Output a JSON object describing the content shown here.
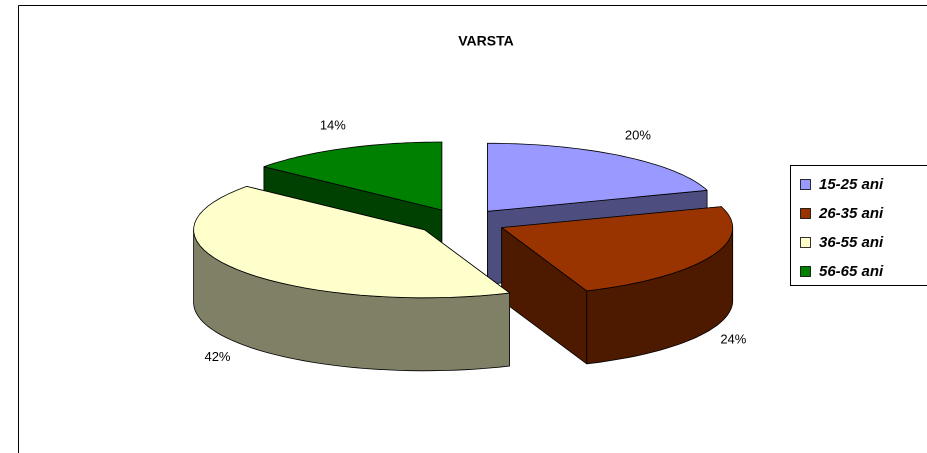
{
  "chart_data": {
    "type": "pie3d",
    "title": "VARSTA",
    "categories": [
      "15-25 ani",
      "26-35 ani",
      "36-55 ani",
      "56-65 ani"
    ],
    "values": [
      20,
      24,
      42,
      14
    ],
    "value_labels": [
      "20%",
      "24%",
      "42%",
      "14%"
    ],
    "colors": [
      "#9999ff",
      "#993300",
      "#ffffcc",
      "#008000"
    ],
    "legend": "right"
  }
}
